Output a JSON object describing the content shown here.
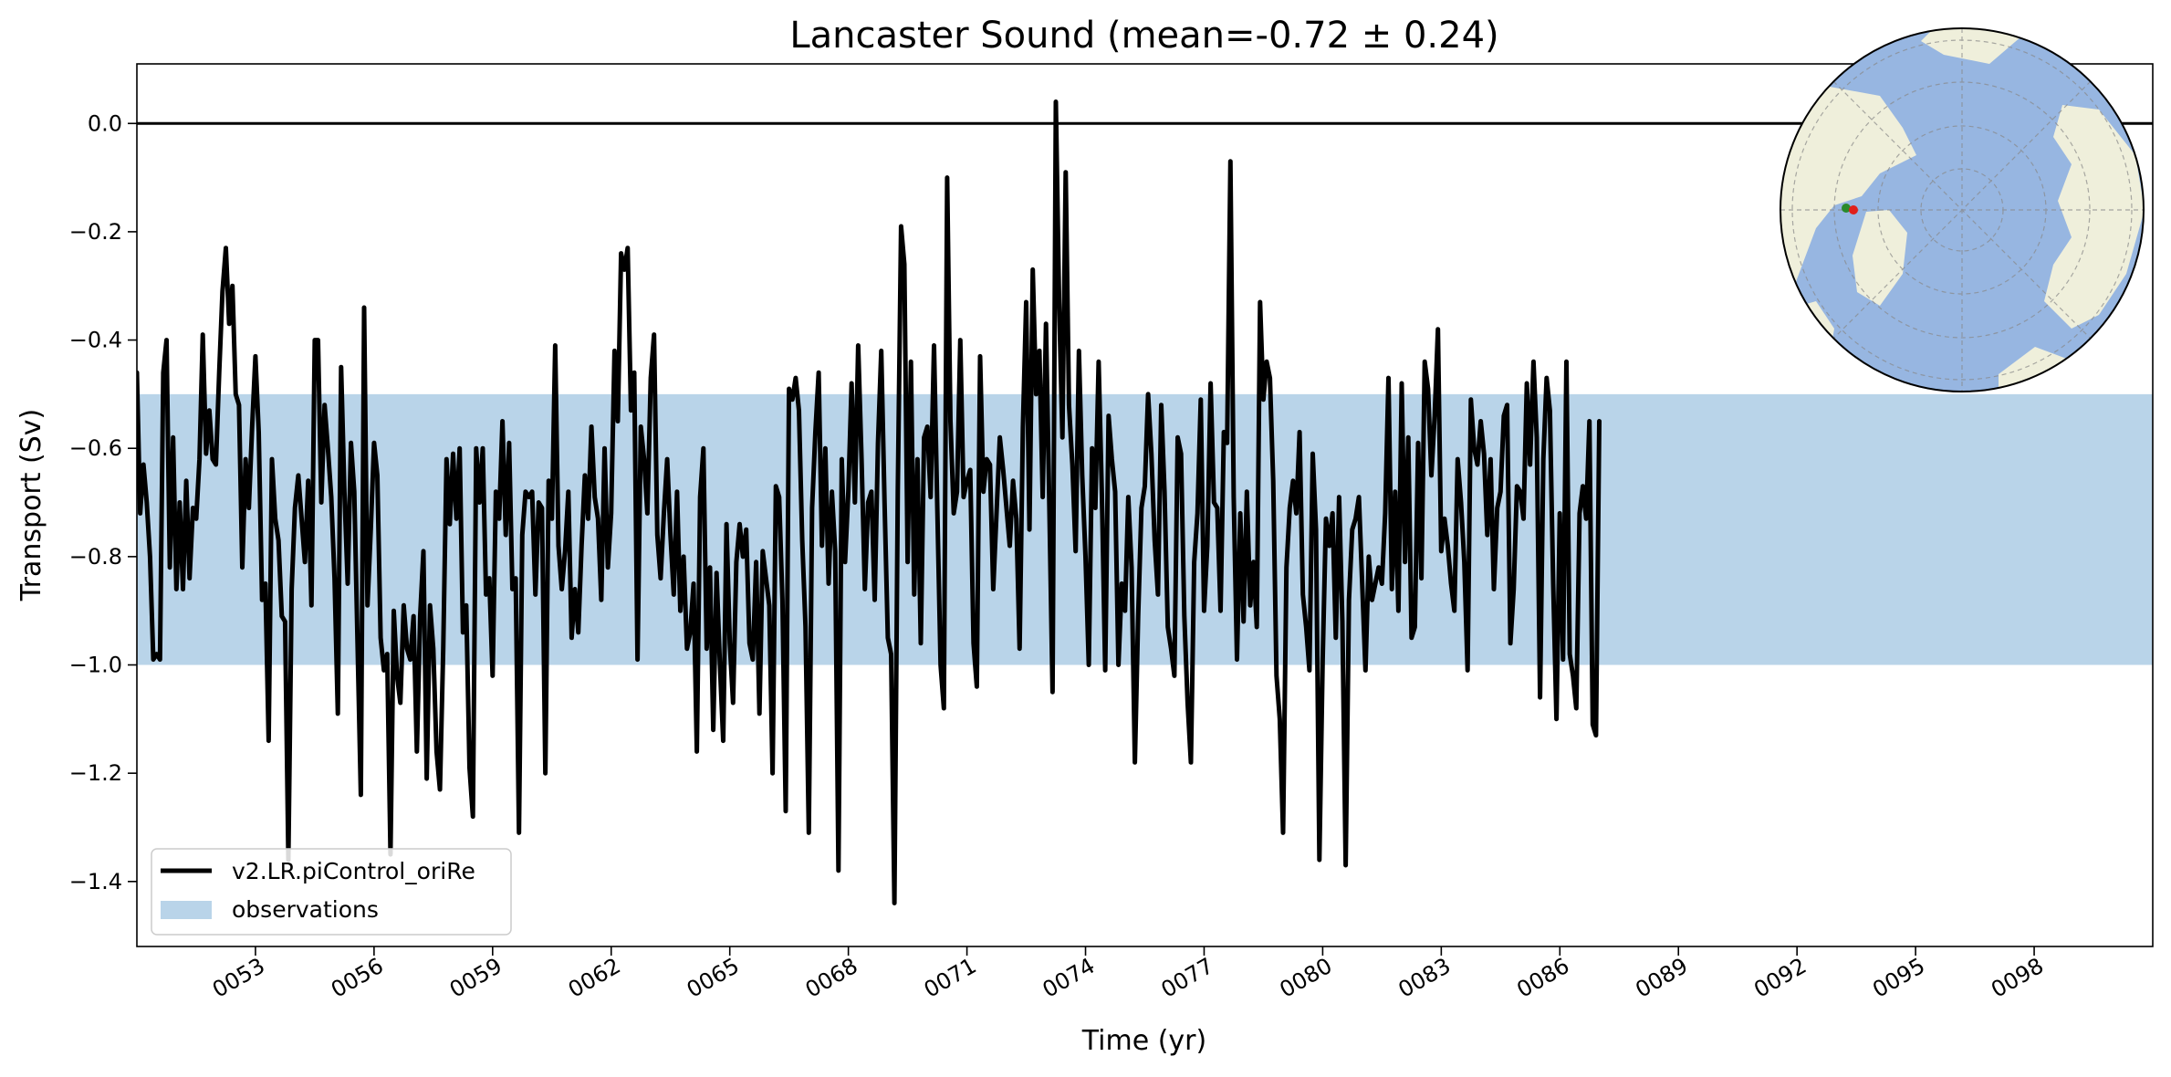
{
  "chart_data": {
    "type": "line",
    "title": "Lancaster Sound (mean=-0.72 ± 0.24)",
    "xlabel": "Time (yr)",
    "ylabel": "Transport (Sv)",
    "xlim": [
      50.0,
      101.0
    ],
    "ylim": [
      -1.52,
      0.11
    ],
    "x_ticks": [
      53,
      56,
      59,
      62,
      65,
      68,
      71,
      74,
      77,
      80,
      83,
      86,
      89,
      92,
      95,
      98
    ],
    "x_tick_labels": [
      "0053",
      "0056",
      "0059",
      "0062",
      "0065",
      "0068",
      "0071",
      "0074",
      "0077",
      "0080",
      "0083",
      "0086",
      "0089",
      "0092",
      "0095",
      "0098"
    ],
    "y_ticks": [
      0.0,
      -0.2,
      -0.4,
      -0.6,
      -0.8,
      -1.0,
      -1.2,
      -1.4
    ],
    "y_tick_labels": [
      "0.0",
      "−0.2",
      "−0.4",
      "−0.6",
      "−0.8",
      "−1.0",
      "−1.2",
      "−1.4"
    ],
    "reference_line": 0.0,
    "observation_band": {
      "label": "observations",
      "ymin": -1.0,
      "ymax": -0.5,
      "color": "#b9d4e9"
    },
    "series": [
      {
        "name": "v2.LR.piControl_oriRe",
        "color": "#000000",
        "x_start": 50.0,
        "x_step": 0.08333,
        "values": [
          -0.46,
          -0.72,
          -0.63,
          -0.7,
          -0.8,
          -0.99,
          -0.98,
          -0.99,
          -0.46,
          -0.4,
          -0.82,
          -0.58,
          -0.86,
          -0.7,
          -0.86,
          -0.66,
          -0.84,
          -0.71,
          -0.73,
          -0.62,
          -0.39,
          -0.61,
          -0.53,
          -0.62,
          -0.63,
          -0.46,
          -0.31,
          -0.23,
          -0.37,
          -0.3,
          -0.5,
          -0.52,
          -0.82,
          -0.62,
          -0.71,
          -0.56,
          -0.43,
          -0.57,
          -0.88,
          -0.85,
          -1.14,
          -0.62,
          -0.73,
          -0.77,
          -0.91,
          -0.92,
          -1.36,
          -0.86,
          -0.71,
          -0.65,
          -0.73,
          -0.81,
          -0.66,
          -0.89,
          -0.4,
          -0.4,
          -0.7,
          -0.52,
          -0.6,
          -0.69,
          -0.84,
          -1.09,
          -0.45,
          -0.68,
          -0.85,
          -0.59,
          -0.68,
          -0.96,
          -1.24,
          -0.34,
          -0.89,
          -0.75,
          -0.59,
          -0.65,
          -0.95,
          -1.01,
          -0.98,
          -1.35,
          -0.9,
          -1.02,
          -1.07,
          -0.89,
          -0.97,
          -0.99,
          -0.91,
          -1.16,
          -0.91,
          -0.79,
          -1.21,
          -0.89,
          -0.97,
          -1.16,
          -1.23,
          -0.97,
          -0.62,
          -0.74,
          -0.61,
          -0.73,
          -0.6,
          -0.94,
          -0.89,
          -1.19,
          -1.28,
          -0.6,
          -0.7,
          -0.6,
          -0.87,
          -0.84,
          -1.02,
          -0.68,
          -0.73,
          -0.55,
          -0.76,
          -0.59,
          -0.86,
          -0.84,
          -1.31,
          -0.76,
          -0.68,
          -0.69,
          -0.68,
          -0.87,
          -0.7,
          -0.71,
          -1.2,
          -0.66,
          -0.73,
          -0.41,
          -0.78,
          -0.86,
          -0.79,
          -0.68,
          -0.95,
          -0.86,
          -0.94,
          -0.78,
          -0.65,
          -0.73,
          -0.56,
          -0.69,
          -0.73,
          -0.88,
          -0.6,
          -0.82,
          -0.72,
          -0.42,
          -0.55,
          -0.24,
          -0.27,
          -0.23,
          -0.53,
          -0.46,
          -0.99,
          -0.56,
          -0.62,
          -0.72,
          -0.47,
          -0.39,
          -0.76,
          -0.84,
          -0.72,
          -0.62,
          -0.76,
          -0.87,
          -0.68,
          -0.9,
          -0.8,
          -0.97,
          -0.94,
          -0.85,
          -1.16,
          -0.69,
          -0.6,
          -0.97,
          -0.82,
          -1.12,
          -0.83,
          -1.0,
          -1.14,
          -0.74,
          -0.96,
          -1.07,
          -0.81,
          -0.74,
          -0.8,
          -0.75,
          -0.96,
          -0.99,
          -0.81,
          -1.09,
          -0.79,
          -0.84,
          -0.89,
          -1.2,
          -0.67,
          -0.69,
          -0.88,
          -1.27,
          -0.49,
          -0.51,
          -0.47,
          -0.53,
          -0.77,
          -0.93,
          -1.31,
          -0.71,
          -0.57,
          -0.46,
          -0.78,
          -0.6,
          -0.85,
          -0.68,
          -0.79,
          -1.38,
          -0.62,
          -0.81,
          -0.68,
          -0.48,
          -0.7,
          -0.41,
          -0.62,
          -0.86,
          -0.7,
          -0.68,
          -0.88,
          -0.59,
          -0.42,
          -0.7,
          -0.95,
          -0.98,
          -1.44,
          -0.68,
          -0.19,
          -0.26,
          -0.81,
          -0.44,
          -0.87,
          -0.62,
          -0.96,
          -0.58,
          -0.56,
          -0.69,
          -0.41,
          -0.71,
          -1.0,
          -1.08,
          -0.1,
          -0.55,
          -0.72,
          -0.68,
          -0.4,
          -0.69,
          -0.66,
          -0.64,
          -0.96,
          -1.04,
          -0.43,
          -0.68,
          -0.62,
          -0.63,
          -0.86,
          -0.72,
          -0.58,
          -0.64,
          -0.71,
          -0.78,
          -0.66,
          -0.73,
          -0.97,
          -0.56,
          -0.33,
          -0.75,
          -0.27,
          -0.5,
          -0.42,
          -0.69,
          -0.37,
          -0.7,
          -1.05,
          0.04,
          -0.33,
          -0.58,
          -0.09,
          -0.52,
          -0.63,
          -0.79,
          -0.42,
          -0.65,
          -0.8,
          -1.0,
          -0.6,
          -0.71,
          -0.44,
          -0.69,
          -1.01,
          -0.54,
          -0.62,
          -0.68,
          -1.0,
          -0.85,
          -0.9,
          -0.69,
          -0.82,
          -1.18,
          -0.91,
          -0.71,
          -0.67,
          -0.5,
          -0.61,
          -0.77,
          -0.87,
          -0.52,
          -0.68,
          -0.93,
          -0.97,
          -1.02,
          -0.58,
          -0.61,
          -0.91,
          -1.07,
          -1.18,
          -0.81,
          -0.72,
          -0.51,
          -0.9,
          -0.78,
          -0.48,
          -0.7,
          -0.71,
          -0.9,
          -0.57,
          -0.59,
          -0.07,
          -0.69,
          -0.99,
          -0.72,
          -0.92,
          -0.68,
          -0.89,
          -0.81,
          -0.93,
          -0.33,
          -0.51,
          -0.44,
          -0.47,
          -0.66,
          -1.02,
          -1.1,
          -1.31,
          -0.82,
          -0.71,
          -0.66,
          -0.72,
          -0.57,
          -0.87,
          -0.93,
          -1.01,
          -0.61,
          -0.75,
          -1.36,
          -0.99,
          -0.73,
          -0.78,
          -0.72,
          -0.95,
          -0.69,
          -0.92,
          -1.37,
          -0.88,
          -0.75,
          -0.73,
          -0.69,
          -0.85,
          -1.01,
          -0.8,
          -0.88,
          -0.85,
          -0.82,
          -0.85,
          -0.72,
          -0.47,
          -0.86,
          -0.68,
          -0.9,
          -0.48,
          -0.81,
          -0.58,
          -0.95,
          -0.93,
          -0.59,
          -0.84,
          -0.44,
          -0.49,
          -0.65,
          -0.54,
          -0.38,
          -0.79,
          -0.73,
          -0.78,
          -0.85,
          -0.9,
          -0.62,
          -0.7,
          -0.81,
          -1.01,
          -0.51,
          -0.6,
          -0.63,
          -0.55,
          -0.61,
          -0.76,
          -0.62,
          -0.86,
          -0.71,
          -0.68,
          -0.54,
          -0.52,
          -0.96,
          -0.86,
          -0.67,
          -0.68,
          -0.73,
          -0.48,
          -0.63,
          -0.44,
          -0.58,
          -1.06,
          -0.62,
          -0.47,
          -0.53,
          -0.85,
          -1.1,
          -0.72,
          -0.99,
          -0.44,
          -0.98,
          -1.02,
          -1.08,
          -0.72,
          -0.67,
          -0.73,
          -0.55,
          -1.11,
          -1.13,
          -0.55
        ]
      }
    ],
    "legend": {
      "position": "lower-left",
      "entries": [
        {
          "label": "v2.LR.piControl_oriRe",
          "kind": "line",
          "color": "#000000"
        },
        {
          "label": "observations",
          "kind": "patch",
          "color": "#b9d4e9"
        }
      ]
    },
    "inset_map": {
      "position": "upper-right",
      "projection": "north-polar-stereographic",
      "ocean_color": "#97b6e1",
      "land_color": "#efefdb",
      "markers": [
        {
          "color": "#2a8a2a"
        },
        {
          "color": "#e0201b"
        }
      ]
    }
  }
}
